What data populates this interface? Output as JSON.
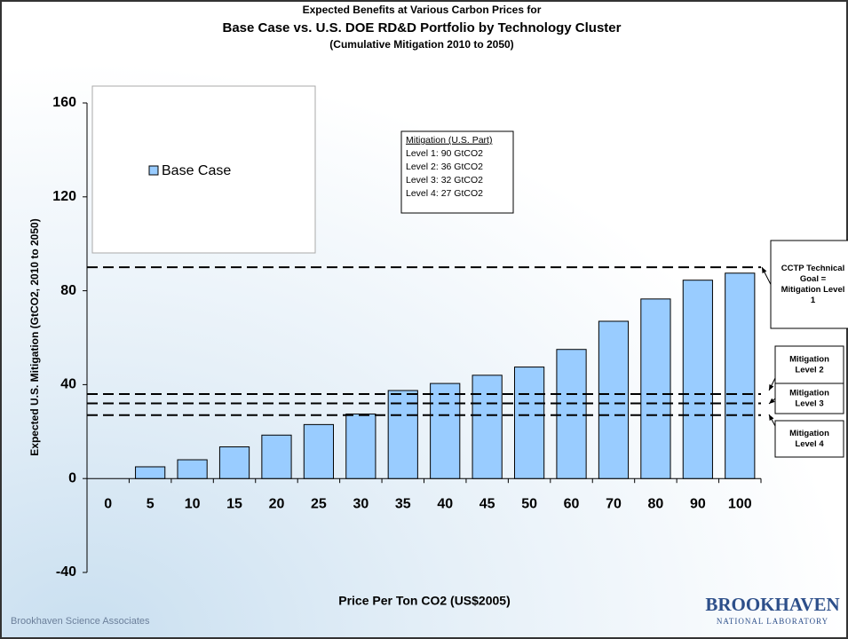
{
  "chart_data": {
    "type": "bar",
    "title": "Expected Benefits at Various Carbon Prices for",
    "subtitle": "Base Case vs. U.S. DOE RD&D Portfolio by Technology Cluster",
    "caption": "(Cumulative Mitigation 2010 to 2050)",
    "xlabel": "Price Per Ton CO2 (US$2005)",
    "ylabel": "Expected U.S. Mitigation (GtCO2, 2010 to 2050)",
    "categories": [
      "0",
      "5",
      "10",
      "15",
      "20",
      "25",
      "30",
      "35",
      "40",
      "45",
      "50",
      "60",
      "70",
      "80",
      "90",
      "100"
    ],
    "series": [
      {
        "name": "Base Case",
        "color": "#99ccff",
        "values": [
          0,
          5,
          8,
          13.5,
          18.5,
          23,
          27.5,
          37.5,
          40.5,
          44,
          47.5,
          55,
          67,
          76.5,
          84.5,
          87.5
        ]
      }
    ],
    "ylim": [
      -40,
      160
    ],
    "yticks": [
      -40,
      0,
      40,
      80,
      120,
      160
    ],
    "legend": "upper left",
    "reference_lines": [
      {
        "value": 90,
        "label": [
          "CCTP Technical",
          "Goal =",
          "Mitigation Level",
          "1"
        ]
      },
      {
        "value": 36,
        "label": [
          "Mitigation",
          "Level 2"
        ]
      },
      {
        "value": 32,
        "label": [
          "Mitigation",
          "Level 3"
        ]
      },
      {
        "value": 27,
        "label": [
          "Mitigation",
          "Level 4"
        ]
      }
    ],
    "text_box": {
      "title": "Mitigation (U.S. Part)",
      "lines": [
        "Level 1:  90 GtCO2",
        "Level 2:  36 GtCO2",
        "Level 3:  32 GtCO2",
        "Level 4:  27 GtCO2"
      ]
    }
  },
  "footer": "Brookhaven Science Associates",
  "logo": {
    "name": "BROOKHAVEN",
    "sub": "NATIONAL LABORATORY"
  }
}
